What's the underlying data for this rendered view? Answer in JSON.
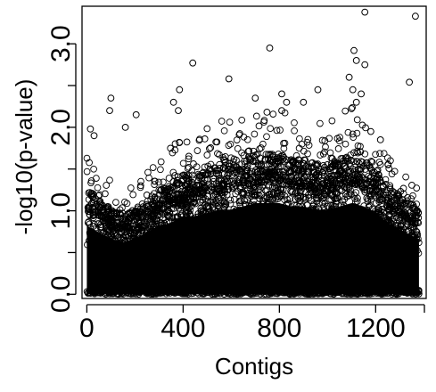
{
  "chart_data": {
    "type": "scatter",
    "title": "",
    "xlabel": "Contigs",
    "ylabel": "-log10(p-value)",
    "xlim": [
      -20,
      1410
    ],
    "ylim": [
      -0.05,
      3.45
    ],
    "x_ticks": [
      0,
      400,
      800,
      1200
    ],
    "x_tick_labels": [
      "0",
      "400",
      "800",
      "1200"
    ],
    "y_ticks": [
      0.0,
      0.5,
      1.0,
      1.5,
      2.0,
      2.5,
      3.0
    ],
    "y_tick_labels": [
      "0.0",
      "",
      "1.0",
      "",
      "2.0",
      "",
      "3.0"
    ],
    "grid": false,
    "legend": "none",
    "marker": "open-circle",
    "marker_color": "#000000",
    "dense_band_upper_envelope": {
      "x": [
        0,
        50,
        100,
        150,
        200,
        250,
        300,
        350,
        400,
        450,
        500,
        550,
        600,
        650,
        700,
        750,
        800,
        850,
        900,
        950,
        1000,
        1050,
        1100,
        1150,
        1200,
        1250,
        1300,
        1350,
        1380
      ],
      "y": [
        1.05,
        0.95,
        0.85,
        0.8,
        0.85,
        0.95,
        1.05,
        1.1,
        1.2,
        1.2,
        1.25,
        1.3,
        1.3,
        1.35,
        1.4,
        1.4,
        1.4,
        1.35,
        1.35,
        1.3,
        1.3,
        1.35,
        1.4,
        1.35,
        1.25,
        1.1,
        1.0,
        0.9,
        0.85
      ]
    },
    "highlighted_points": {
      "x": [
        1155,
        1365,
        1110,
        1120,
        760,
        440,
        1155,
        590,
        1090,
        1340,
        100,
        385,
        960,
        1140,
        1105,
        1120,
        810,
        830,
        900,
        700,
        380,
        810,
        360,
        95,
        160,
        205,
        15,
        30,
        1180,
        1220
      ],
      "y": [
        3.38,
        3.33,
        2.92,
        2.8,
        2.95,
        2.77,
        2.75,
        2.58,
        2.6,
        2.54,
        2.35,
        2.45,
        2.45,
        2.4,
        2.45,
        2.3,
        2.4,
        2.3,
        2.3,
        2.35,
        2.2,
        2.2,
        2.3,
        2.2,
        2.0,
        2.15,
        1.98,
        1.9,
        1.95,
        1.85
      ]
    }
  }
}
